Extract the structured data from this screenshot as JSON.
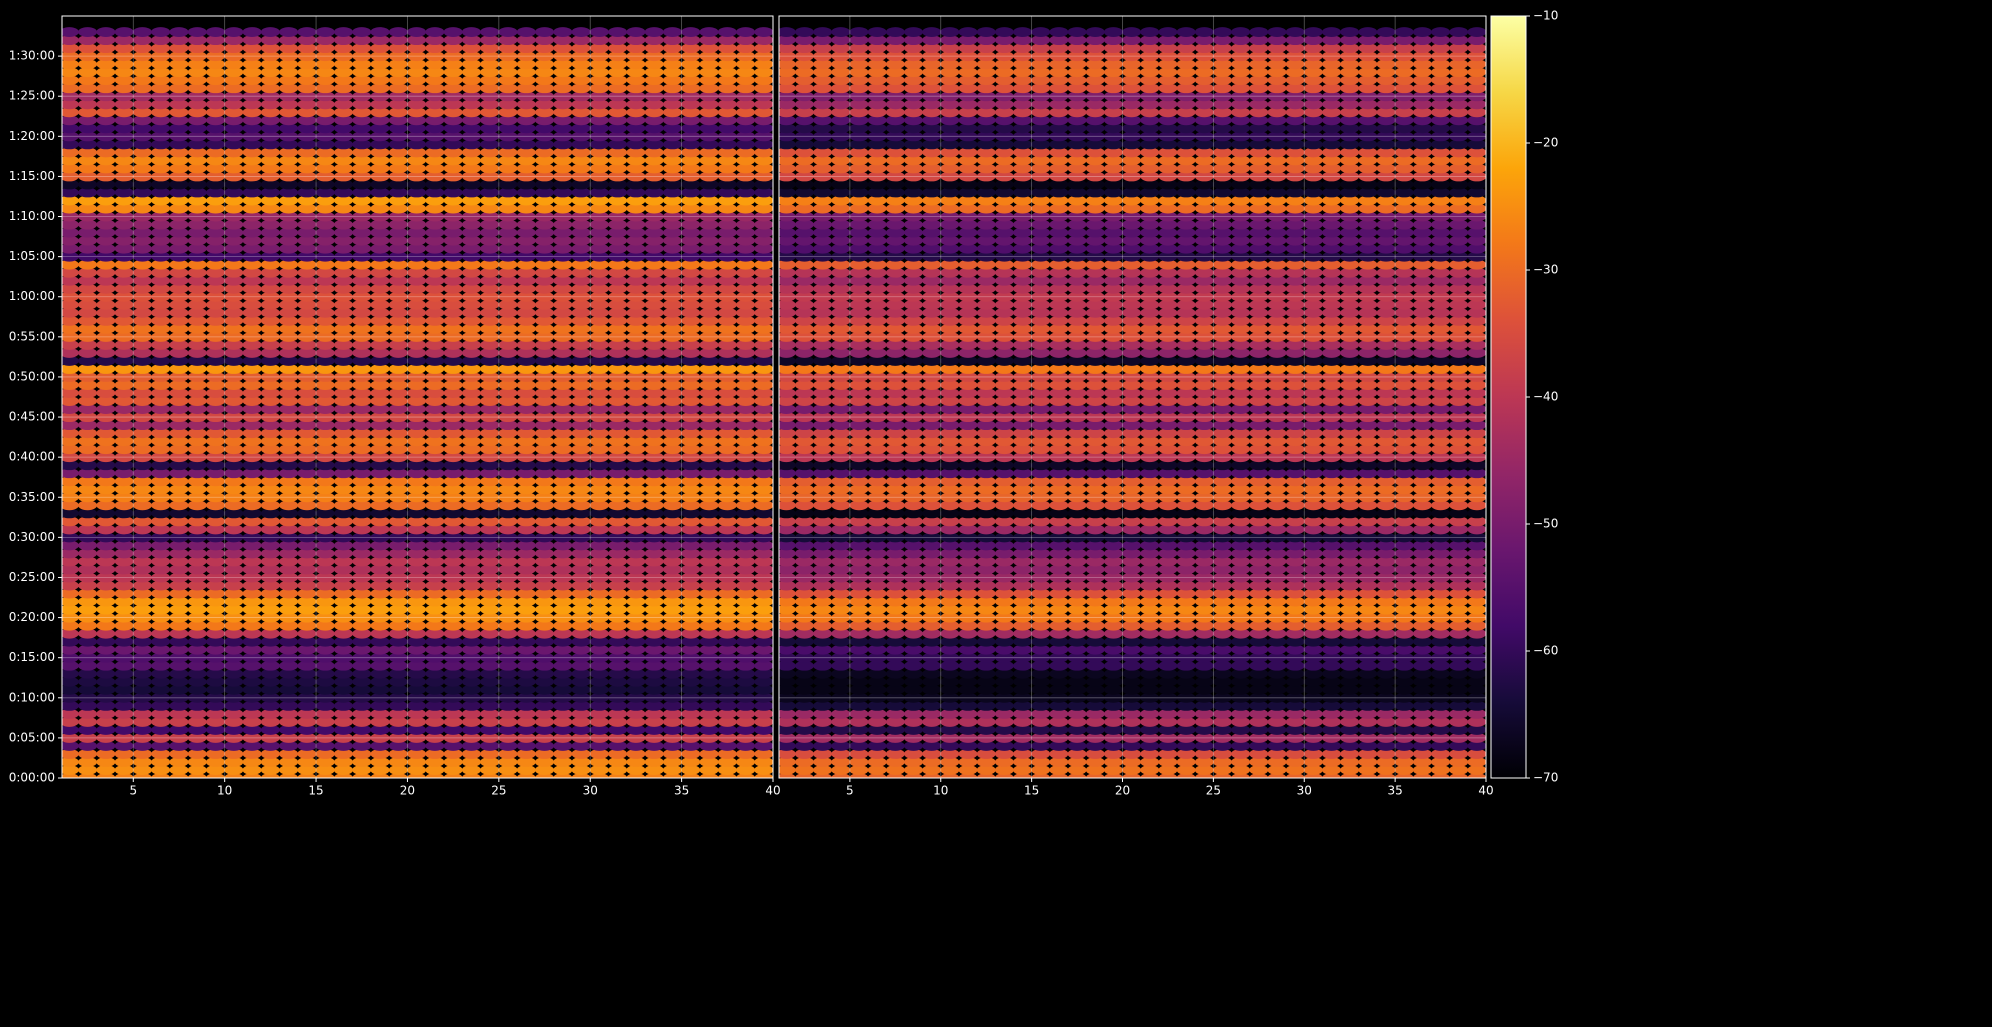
{
  "chart_data": {
    "type": "heatmap",
    "colormap": "inferno",
    "xlim": [
      1.1,
      40
    ],
    "xticks": [
      5,
      10,
      15,
      20,
      25,
      30,
      35,
      40
    ],
    "x": [
      1.5,
      2.5,
      3.5,
      4.5,
      5.5,
      6.5,
      7.5,
      8.5,
      9.5,
      10.5,
      11.5,
      12.5,
      13.5,
      14.5,
      15.5,
      16.5,
      17.5,
      18.5,
      19.5,
      20.5,
      21.5,
      22.5,
      23.5,
      24.5,
      25.5,
      26.5,
      27.5,
      28.5,
      29.5,
      30.5,
      31.5,
      32.5,
      33.5,
      34.5,
      35.5,
      36.5,
      37.5,
      38.5,
      39.5
    ],
    "ylim": [
      0,
      95
    ],
    "yticks": [
      {
        "value": 0,
        "label": "0:00:00"
      },
      {
        "value": 5,
        "label": "0:05:00"
      },
      {
        "value": 10,
        "label": "0:10:00"
      },
      {
        "value": 15,
        "label": "0:15:00"
      },
      {
        "value": 20,
        "label": "0:20:00"
      },
      {
        "value": 25,
        "label": "0:25:00"
      },
      {
        "value": 30,
        "label": "0:30:00"
      },
      {
        "value": 35,
        "label": "0:35:00"
      },
      {
        "value": 40,
        "label": "0:40:00"
      },
      {
        "value": 45,
        "label": "0:45:00"
      },
      {
        "value": 50,
        "label": "0:50:00"
      },
      {
        "value": 55,
        "label": "0:55:00"
      },
      {
        "value": 60,
        "label": "1:00:00"
      },
      {
        "value": 65,
        "label": "1:05:00"
      },
      {
        "value": 70,
        "label": "1:10:00"
      },
      {
        "value": 75,
        "label": "1:15:00"
      },
      {
        "value": 80,
        "label": "1:20:00"
      },
      {
        "value": 85,
        "label": "1:25:00"
      },
      {
        "value": 90,
        "label": "1:30:00"
      }
    ],
    "y": [
      0,
      1,
      2,
      3,
      4,
      5,
      6,
      7,
      8,
      9,
      10,
      11,
      12,
      13,
      14,
      15,
      16,
      17,
      18,
      19,
      20,
      21,
      22,
      23,
      24,
      25,
      26,
      27,
      28,
      29,
      30,
      31,
      32,
      33,
      34,
      35,
      36,
      37,
      38,
      39,
      40,
      41,
      42,
      43,
      44,
      45,
      46,
      47,
      48,
      49,
      50,
      51,
      52,
      53,
      54,
      55,
      56,
      57,
      58,
      59,
      60,
      61,
      62,
      63,
      64,
      65,
      66,
      67,
      68,
      69,
      70,
      71,
      72,
      73,
      74,
      75,
      76,
      77,
      78,
      79,
      80,
      81,
      82,
      83,
      84,
      85,
      86,
      87,
      88,
      89,
      90,
      91,
      92,
      93
    ],
    "grid": true,
    "clim": [
      -70,
      -10
    ],
    "cticks": [
      {
        "value": -70,
        "label": "−70"
      },
      {
        "value": -60,
        "label": "−60"
      },
      {
        "value": -50,
        "label": "−50"
      },
      {
        "value": -40,
        "label": "−40"
      },
      {
        "value": -30,
        "label": "−30"
      },
      {
        "value": -20,
        "label": "−20"
      },
      {
        "value": -10,
        "label": "−10"
      }
    ],
    "panels": [
      {
        "values": [
          -27,
          -25,
          -26,
          -30,
          -55,
          -38,
          -58,
          -38,
          -40,
          -60,
          -62,
          -64,
          -63,
          -62,
          -55,
          -56,
          -52,
          -60,
          -40,
          -28,
          -25,
          -23,
          -24,
          -30,
          -38,
          -40,
          -42,
          -40,
          -45,
          -50,
          -60,
          -40,
          -33,
          -65,
          -30,
          -27,
          -26,
          -28,
          -50,
          -62,
          -36,
          -30,
          -29,
          -33,
          -45,
          -36,
          -45,
          -33,
          -35,
          -30,
          -32,
          -24,
          -62,
          -42,
          -38,
          -30,
          -29,
          -33,
          -36,
          -35,
          -34,
          -36,
          -40,
          -36,
          -28,
          -58,
          -50,
          -48,
          -50,
          -47,
          -45,
          -26,
          -23,
          -60,
          -66,
          -32,
          -28,
          -26,
          -30,
          -60,
          -55,
          -58,
          -50,
          -33,
          -40,
          -44,
          -30,
          -28,
          -26,
          -27,
          -30,
          -34,
          -45,
          -55
        ]
      },
      {
        "values": [
          -31,
          -29,
          -30,
          -35,
          -60,
          -44,
          -62,
          -42,
          -45,
          -64,
          -67,
          -68,
          -68,
          -67,
          -60,
          -60,
          -57,
          -64,
          -44,
          -32,
          -28,
          -26,
          -28,
          -34,
          -42,
          -45,
          -47,
          -45,
          -50,
          -55,
          -64,
          -45,
          -38,
          -68,
          -34,
          -31,
          -30,
          -32,
          -55,
          -66,
          -40,
          -34,
          -33,
          -37,
          -50,
          -40,
          -50,
          -37,
          -40,
          -34,
          -36,
          -28,
          -66,
          -47,
          -43,
          -34,
          -33,
          -37,
          -41,
          -40,
          -39,
          -41,
          -45,
          -41,
          -32,
          -62,
          -56,
          -53,
          -55,
          -52,
          -50,
          -30,
          -27,
          -65,
          -68,
          -36,
          -32,
          -30,
          -34,
          -64,
          -60,
          -62,
          -55,
          -38,
          -45,
          -49,
          -34,
          -32,
          -30,
          -31,
          -34,
          -38,
          -50,
          -60
        ]
      }
    ]
  }
}
